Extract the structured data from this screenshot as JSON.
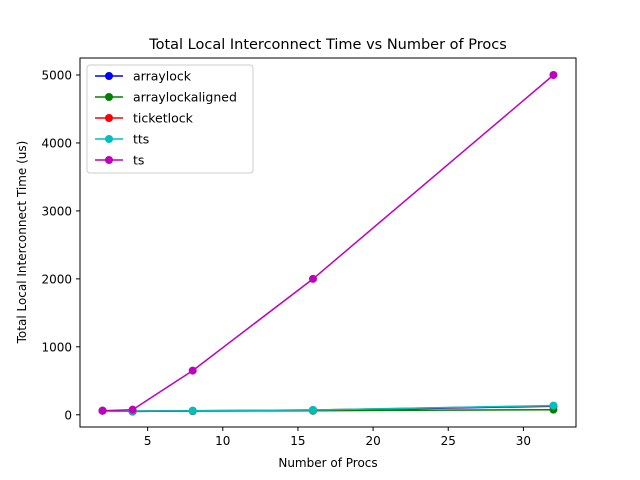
{
  "chart_data": {
    "type": "line",
    "title": "Total Local Interconnect Time vs Number of Procs",
    "xlabel": "Number of Procs",
    "ylabel": "Total Local Interconnect Time (us)",
    "xlim": [
      0.5,
      33.5
    ],
    "ylim": [
      -180,
      5250
    ],
    "xticks": [
      5,
      10,
      15,
      20,
      25,
      30
    ],
    "yticks": [
      0,
      1000,
      2000,
      3000,
      4000,
      5000
    ],
    "grid": false,
    "legend_position": "top-left",
    "x": [
      2,
      4,
      8,
      16,
      32
    ],
    "series": [
      {
        "name": "arraylock",
        "color": "#0000ff",
        "values": [
          60,
          50,
          55,
          65,
          125
        ]
      },
      {
        "name": "arraylockaligned",
        "color": "#008000",
        "values": [
          60,
          50,
          55,
          60,
          75
        ]
      },
      {
        "name": "ticketlock",
        "color": "#ff0000",
        "values": [
          60,
          55,
          60,
          70,
          130
        ]
      },
      {
        "name": "tts",
        "color": "#00bfbf",
        "values": [
          60,
          55,
          60,
          70,
          135
        ]
      },
      {
        "name": "ts",
        "color": "#bf00bf",
        "values": [
          60,
          75,
          650,
          2000,
          5000
        ]
      }
    ]
  }
}
